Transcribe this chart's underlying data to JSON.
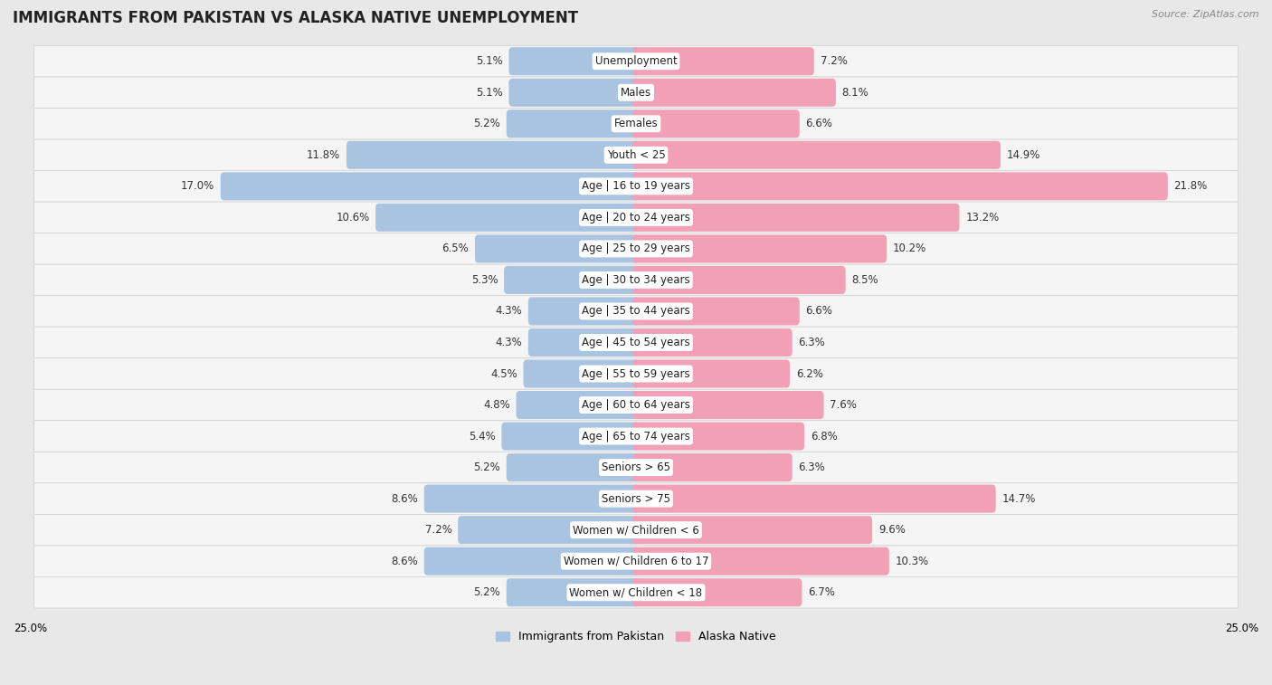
{
  "title": "IMMIGRANTS FROM PAKISTAN VS ALASKA NATIVE UNEMPLOYMENT",
  "source": "Source: ZipAtlas.com",
  "categories": [
    "Unemployment",
    "Males",
    "Females",
    "Youth < 25",
    "Age | 16 to 19 years",
    "Age | 20 to 24 years",
    "Age | 25 to 29 years",
    "Age | 30 to 34 years",
    "Age | 35 to 44 years",
    "Age | 45 to 54 years",
    "Age | 55 to 59 years",
    "Age | 60 to 64 years",
    "Age | 65 to 74 years",
    "Seniors > 65",
    "Seniors > 75",
    "Women w/ Children < 6",
    "Women w/ Children 6 to 17",
    "Women w/ Children < 18"
  ],
  "left_values": [
    5.1,
    5.1,
    5.2,
    11.8,
    17.0,
    10.6,
    6.5,
    5.3,
    4.3,
    4.3,
    4.5,
    4.8,
    5.4,
    5.2,
    8.6,
    7.2,
    8.6,
    5.2
  ],
  "right_values": [
    7.2,
    8.1,
    6.6,
    14.9,
    21.8,
    13.2,
    10.2,
    8.5,
    6.6,
    6.3,
    6.2,
    7.6,
    6.8,
    6.3,
    14.7,
    9.6,
    10.3,
    6.7
  ],
  "left_color": "#a8c4e0",
  "right_color": "#f2a0b8",
  "bar_height": 0.6,
  "xlim": 25.0,
  "left_label": "Immigrants from Pakistan",
  "right_label": "Alaska Native",
  "bg_color": "#e8e8e8",
  "row_color": "#f5f5f5",
  "row_border": "#d0d0d0",
  "title_fontsize": 12,
  "label_fontsize": 9.0,
  "value_fontsize": 8.5,
  "cat_fontsize": 8.5
}
